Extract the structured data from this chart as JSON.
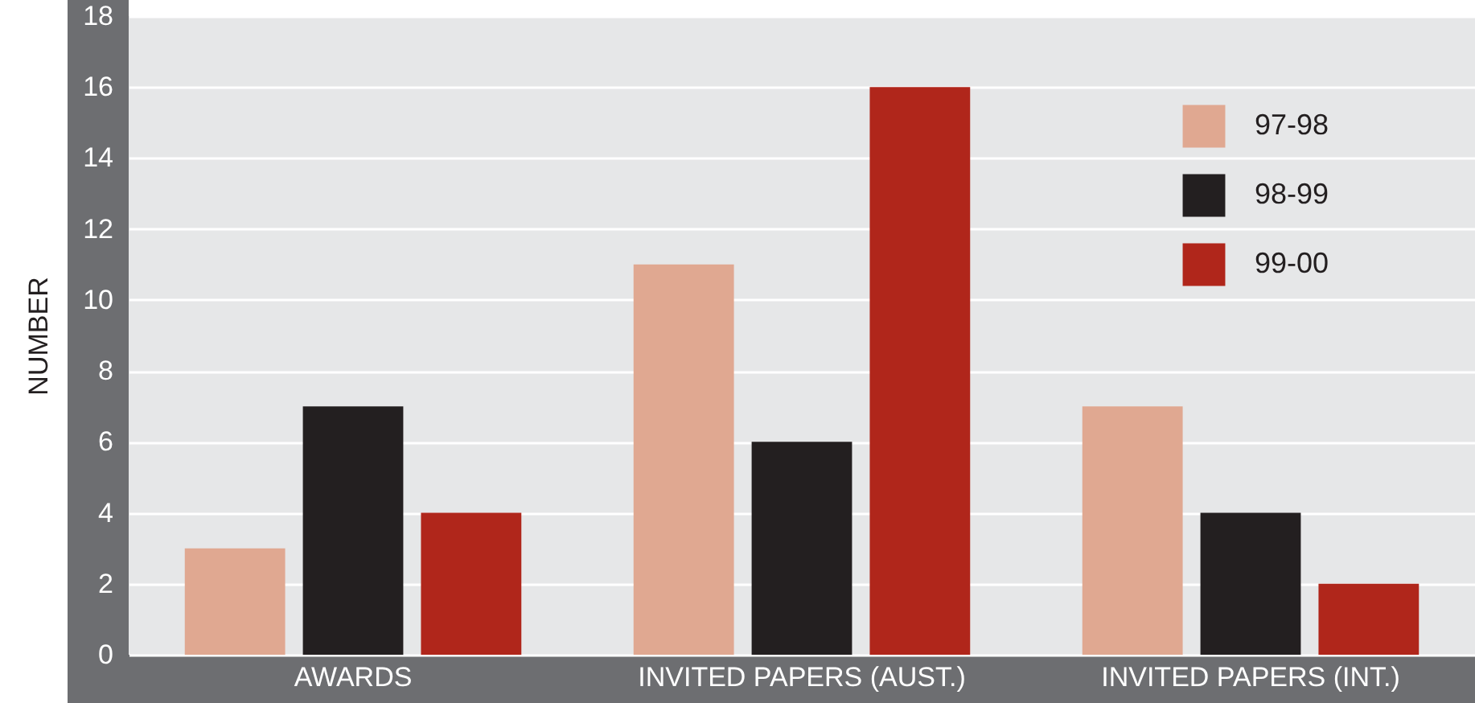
{
  "chart_data": {
    "type": "bar",
    "ylabel": "NUMBER",
    "categories": [
      "AWARDS",
      "INVITED PAPERS (AUST.)",
      "INVITED PAPERS (INT.)"
    ],
    "series": [
      {
        "name": "97-98",
        "color": "#e0a891",
        "values": [
          3,
          11,
          7
        ]
      },
      {
        "name": "98-99",
        "color": "#231f20",
        "values": [
          7,
          6,
          4
        ]
      },
      {
        "name": "99-00",
        "color": "#b0261b",
        "values": [
          4,
          16,
          2
        ]
      }
    ],
    "ylim": [
      0,
      18
    ],
    "yticks": [
      0,
      2,
      4,
      6,
      8,
      10,
      12,
      14,
      16,
      18
    ],
    "grid": "y",
    "legend": "top right"
  }
}
